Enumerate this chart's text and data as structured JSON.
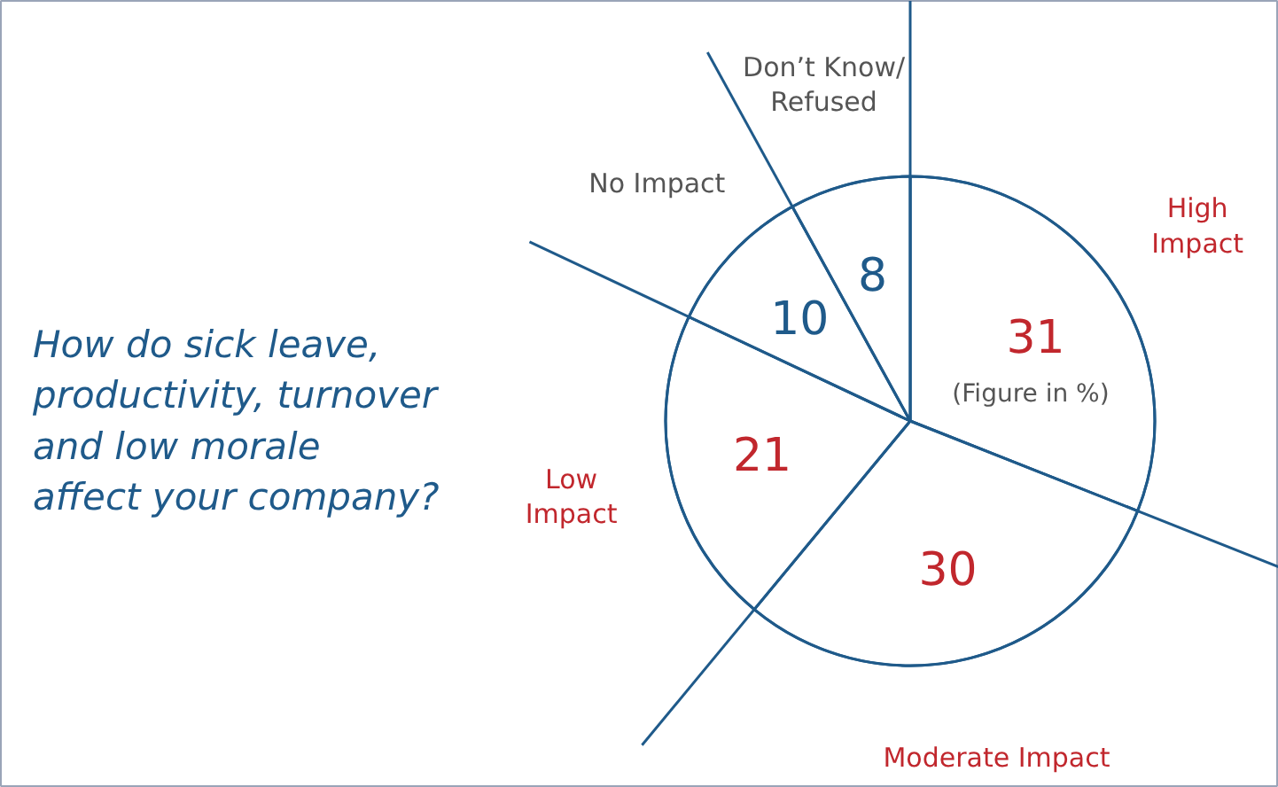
{
  "chart_data": {
    "type": "pie",
    "title": "How do sick leave,\nproductivity, turnover\nand low morale\naffect your company?",
    "categories": [
      "High\nImpact",
      "Moderate Impact",
      "Low\nImpact",
      "No Impact",
      "Don’t Know/\nRefused"
    ],
    "values": [
      31,
      30,
      21,
      10,
      8
    ],
    "colors": [
      "#ffffff",
      "#ffffff",
      "#ffffff",
      "#ffffff",
      "#ffffff"
    ],
    "data_labels": true,
    "annotations": [
      "(Figure in %)"
    ]
  }
}
